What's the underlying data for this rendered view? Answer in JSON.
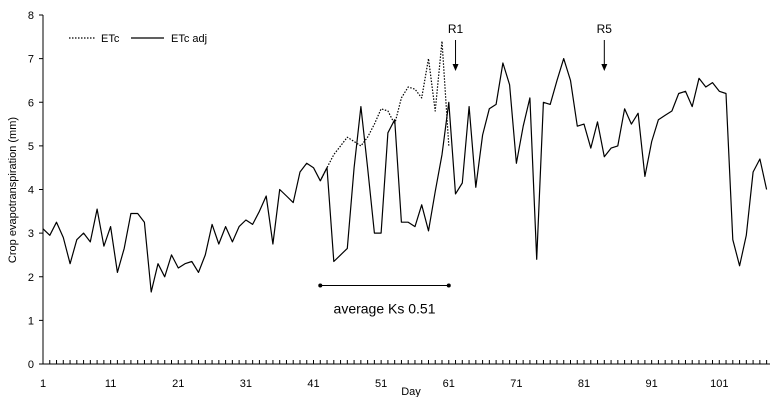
{
  "chart_data": {
    "type": "line",
    "xlabel": "Day",
    "ylabel": "Crop evapotranspiration (mm)",
    "xlim": [
      1,
      108
    ],
    "ylim": [
      0,
      8
    ],
    "x_ticks": [
      1,
      11,
      21,
      31,
      41,
      51,
      61,
      71,
      81,
      91,
      101
    ],
    "x_tick_labels": [
      "1",
      "11",
      "21",
      "31",
      "41",
      "51",
      "61",
      "71",
      "81",
      "91",
      "101"
    ],
    "y_ticks": [
      0,
      1,
      2,
      3,
      4,
      5,
      6,
      7,
      8
    ],
    "y_tick_labels": [
      "0",
      "1",
      "2",
      "3",
      "4",
      "5",
      "6",
      "7",
      "8"
    ],
    "grid": false,
    "legend_position": "top-left",
    "series": [
      {
        "name": "ETc",
        "style": "dotted",
        "x": [
          42,
          43,
          44,
          45,
          46,
          47,
          48,
          49,
          50,
          51,
          52,
          53,
          54,
          55,
          56,
          57,
          58,
          59,
          60,
          61
        ],
        "values": [
          4.2,
          4.5,
          4.8,
          5.0,
          5.2,
          5.1,
          5.0,
          5.2,
          5.5,
          5.85,
          5.8,
          5.5,
          6.1,
          6.35,
          6.3,
          6.1,
          7.0,
          5.8,
          7.4,
          5.0
        ]
      },
      {
        "name": "ETc adj",
        "style": "solid",
        "x": [
          1,
          2,
          3,
          4,
          5,
          6,
          7,
          8,
          9,
          10,
          11,
          12,
          13,
          14,
          15,
          16,
          17,
          18,
          19,
          20,
          21,
          22,
          23,
          24,
          25,
          26,
          27,
          28,
          29,
          30,
          31,
          32,
          33,
          34,
          35,
          36,
          37,
          38,
          39,
          40,
          41,
          42,
          43,
          44,
          45,
          46,
          47,
          48,
          49,
          50,
          51,
          52,
          53,
          54,
          55,
          56,
          57,
          58,
          59,
          60,
          61,
          62,
          63,
          64,
          65,
          66,
          67,
          68,
          69,
          70,
          71,
          72,
          73,
          74,
          75,
          76,
          77,
          78,
          79,
          80,
          81,
          82,
          83,
          84,
          85,
          86,
          87,
          88,
          89,
          90,
          91,
          92,
          93,
          94,
          95,
          96,
          97,
          98,
          99,
          100,
          101,
          102,
          103,
          104,
          105,
          106,
          107,
          108
        ],
        "values": [
          3.1,
          2.95,
          3.25,
          2.9,
          2.3,
          2.85,
          3.0,
          2.8,
          3.55,
          2.7,
          3.15,
          2.1,
          2.65,
          3.45,
          3.45,
          3.25,
          1.65,
          2.3,
          2.0,
          2.5,
          2.2,
          2.3,
          2.35,
          2.1,
          2.5,
          3.2,
          2.75,
          3.15,
          2.8,
          3.15,
          3.3,
          3.2,
          3.5,
          3.85,
          2.75,
          4.0,
          3.85,
          3.7,
          4.4,
          4.6,
          4.5,
          4.2,
          4.5,
          2.35,
          2.5,
          2.65,
          4.5,
          5.9,
          4.5,
          3.0,
          3.0,
          5.3,
          5.6,
          3.25,
          3.25,
          3.15,
          3.65,
          3.05,
          3.95,
          4.8,
          6.0,
          3.9,
          4.15,
          5.9,
          4.05,
          5.25,
          5.85,
          5.95,
          6.9,
          6.4,
          4.6,
          5.45,
          6.1,
          2.4,
          6.0,
          5.95,
          6.5,
          7.0,
          6.5,
          5.45,
          5.5,
          4.95,
          5.55,
          4.75,
          4.95,
          5.0,
          5.85,
          5.5,
          5.75,
          4.3,
          5.1,
          5.6,
          5.7,
          5.8,
          6.2,
          6.25,
          5.9,
          6.55,
          6.35,
          6.45,
          6.25,
          6.2,
          2.85,
          2.25,
          2.95,
          4.4,
          4.7,
          4.0
        ]
      }
    ],
    "annotations": [
      {
        "text": "R1",
        "x": 62,
        "arrow": true
      },
      {
        "text": "R5",
        "x": 84,
        "arrow": true
      },
      {
        "text": "average Ks 0.51",
        "x_start": 42,
        "x_end": 61,
        "y": 1.8
      }
    ]
  }
}
